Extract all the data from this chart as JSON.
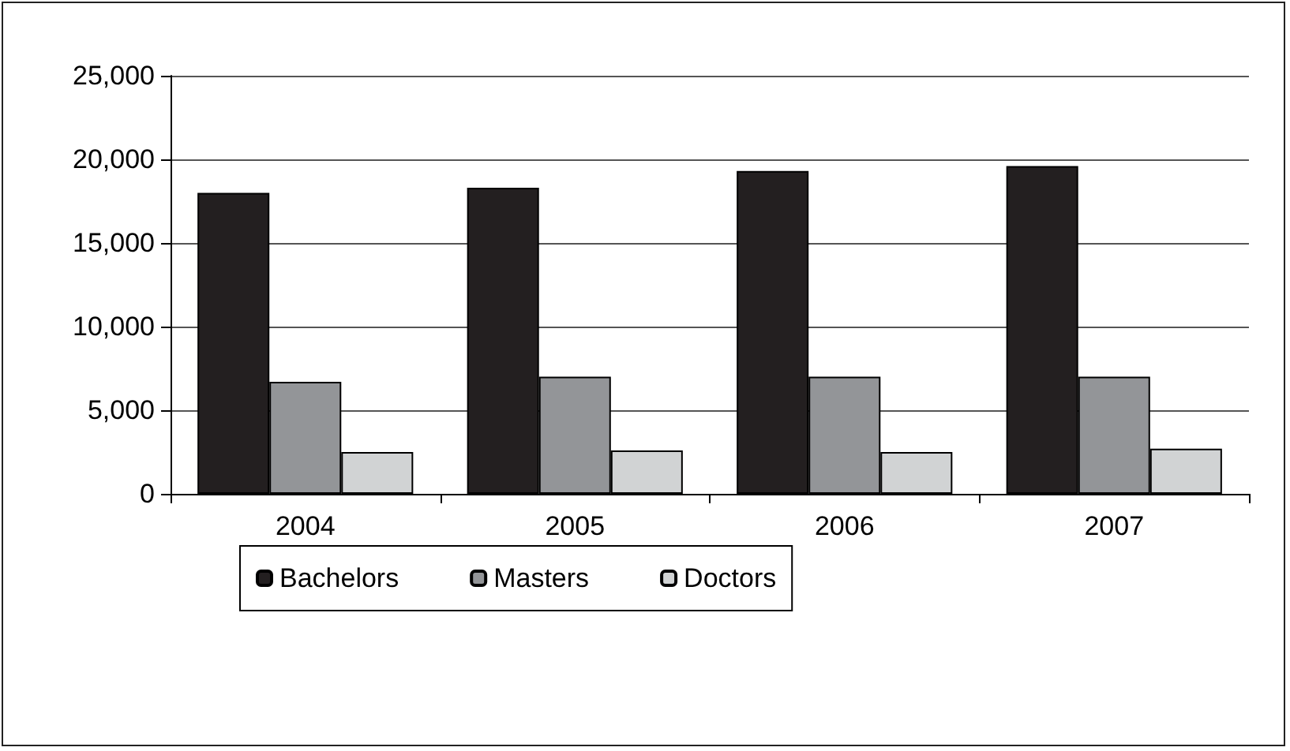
{
  "chart_data": {
    "type": "bar",
    "categories": [
      "2004",
      "2005",
      "2006",
      "2007"
    ],
    "series": [
      {
        "name": "Bachelors",
        "color": "#231f20",
        "values": [
          18000,
          18300,
          19300,
          19600
        ]
      },
      {
        "name": "Masters",
        "color": "#939598",
        "values": [
          6700,
          7000,
          7000,
          7000
        ]
      },
      {
        "name": "Doctors",
        "color": "#d1d3d4",
        "values": [
          2500,
          2600,
          2500,
          2700
        ]
      }
    ],
    "ylim": [
      0,
      25000
    ],
    "yticks": [
      0,
      {
        "value": 5000,
        "label": "5,000"
      },
      {
        "value": 10000,
        "label": "10,000"
      },
      {
        "value": 15000,
        "label": "15,000"
      },
      {
        "value": 20000,
        "label": "20,000"
      },
      {
        "value": 25000,
        "label": "25,000"
      }
    ],
    "grid": "y",
    "legend": "bottom"
  }
}
